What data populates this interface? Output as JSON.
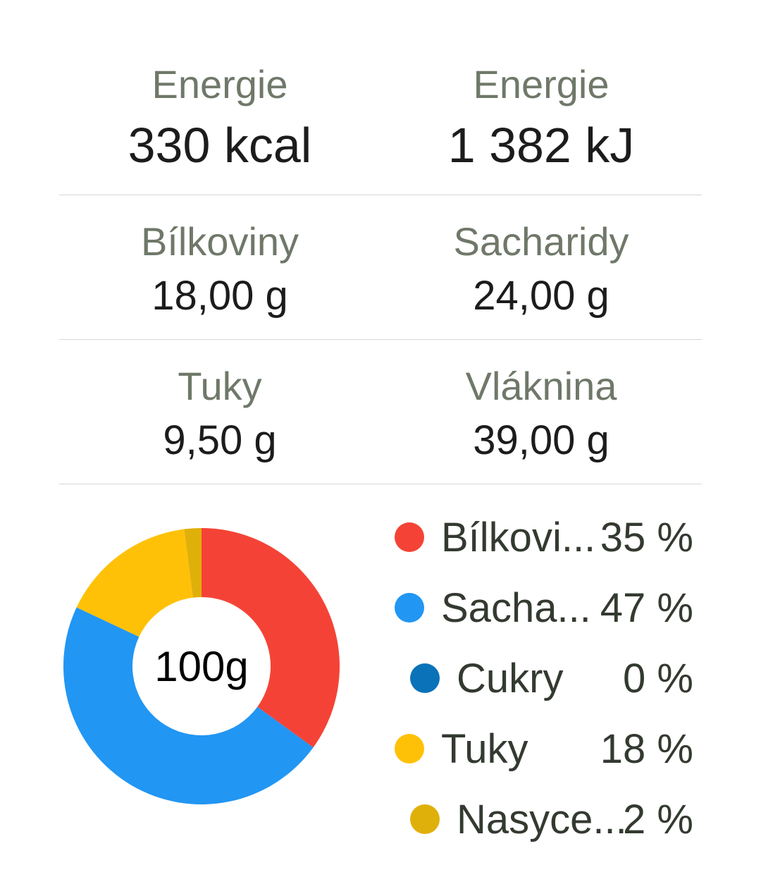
{
  "stats": {
    "energy_kcal": {
      "label": "Energie",
      "value": "330 kcal"
    },
    "energy_kj": {
      "label": "Energie",
      "value": "1 382 kJ"
    },
    "protein": {
      "label": "Bílkoviny",
      "value": "18,00 g"
    },
    "carbs": {
      "label": "Sacharidy",
      "value": "24,00 g"
    },
    "fat": {
      "label": "Tuky",
      "value": "9,50 g"
    },
    "fiber": {
      "label": "Vláknina",
      "value": "39,00 g"
    }
  },
  "chart_data": {
    "type": "pie",
    "center_label": "100g",
    "slices": [
      {
        "name": "Bílkoviny",
        "value": 35,
        "color": "#f44336"
      },
      {
        "name": "Sacharidy",
        "value": 47,
        "color": "#2196f3"
      },
      {
        "name": "Tuky",
        "value": 16,
        "color": "#ffc107"
      },
      {
        "name": "Nasycené",
        "value": 2,
        "color": "#e0b00a"
      }
    ]
  },
  "legend": {
    "items": [
      {
        "name": "Bílkovi...",
        "percent": "35 %",
        "color": "#f44336",
        "indent": 0
      },
      {
        "name": "Sacha...",
        "percent": "47 %",
        "color": "#2196f3",
        "indent": 0
      },
      {
        "name": "Cukry",
        "percent": "0 %",
        "color": "#0a72b8",
        "indent": 1
      },
      {
        "name": "Tuky",
        "percent": "18 %",
        "color": "#ffc107",
        "indent": 0
      },
      {
        "name": "Nasyce...",
        "percent": "2 %",
        "color": "#e0b00a",
        "indent": 1
      }
    ]
  }
}
